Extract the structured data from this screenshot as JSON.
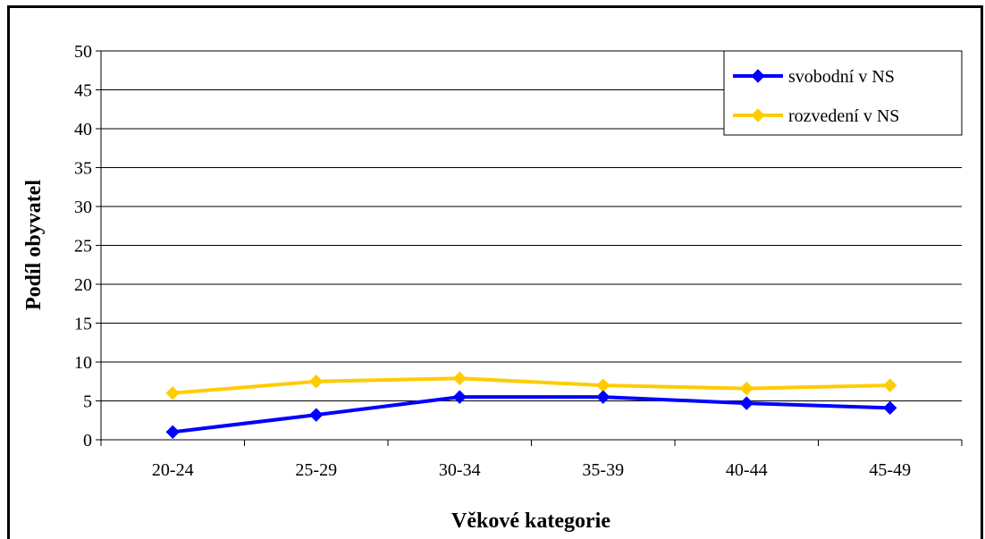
{
  "chart_data": {
    "type": "line",
    "title": "",
    "xlabel": "Věkové kategorie",
    "ylabel": "Podíl obyvatel",
    "categories": [
      "20-24",
      "25-29",
      "30-34",
      "35-39",
      "40-44",
      "45-49"
    ],
    "ylim": [
      0,
      50
    ],
    "yticks": [
      0,
      5,
      10,
      15,
      20,
      25,
      30,
      35,
      40,
      45,
      50
    ],
    "grid": "horizontal",
    "legend_position": "top-right",
    "series": [
      {
        "name": "svobodní v NS",
        "color": "#0000ff",
        "marker": "diamond",
        "values": [
          1.0,
          3.2,
          5.5,
          5.5,
          4.7,
          4.1
        ]
      },
      {
        "name": "rozvedení v NS",
        "color": "#ffcc00",
        "marker": "diamond",
        "values": [
          6.0,
          7.5,
          7.9,
          7.0,
          6.6,
          7.0
        ]
      }
    ]
  }
}
